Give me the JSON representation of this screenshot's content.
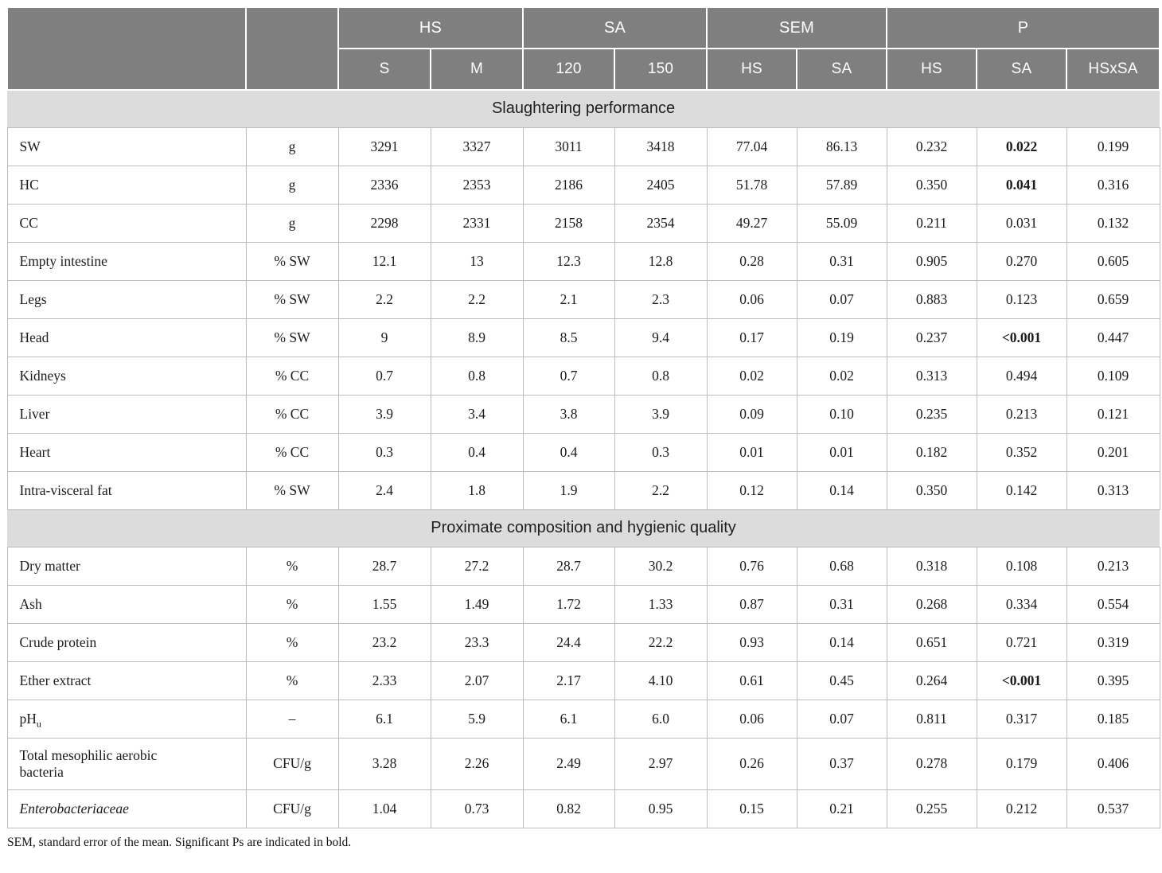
{
  "colors": {
    "header_bg": "#7f7f7f",
    "header_text": "#ffffff",
    "section_bg": "#dcdcdc",
    "border": "#bdbdbd"
  },
  "table": {
    "header": {
      "groups": [
        {
          "label": "HS",
          "span": 2
        },
        {
          "label": "SA",
          "span": 2
        },
        {
          "label": "SEM",
          "span": 2
        },
        {
          "label": "P",
          "span": 3
        }
      ],
      "subcols": [
        "S",
        "M",
        "120",
        "150",
        "HS",
        "SA",
        "HS",
        "SA",
        "HSxSA"
      ]
    },
    "sections": [
      {
        "title": "Slaughtering performance",
        "rows": [
          {
            "label": "SW",
            "unit": "g",
            "values": [
              "3291",
              "3327",
              "3011",
              "3418",
              "77.04",
              "86.13",
              "0.232",
              "0.022",
              "0.199"
            ],
            "bold": [
              7
            ]
          },
          {
            "label": "HC",
            "unit": "g",
            "values": [
              "2336",
              "2353",
              "2186",
              "2405",
              "51.78",
              "57.89",
              "0.350",
              "0.041",
              "0.316"
            ],
            "bold": [
              7
            ]
          },
          {
            "label": "CC",
            "unit": "g",
            "values": [
              "2298",
              "2331",
              "2158",
              "2354",
              "49.27",
              "55.09",
              "0.211",
              "0.031",
              "0.132"
            ],
            "bold": []
          },
          {
            "label": "Empty intestine",
            "unit": "% SW",
            "values": [
              "12.1",
              "13",
              "12.3",
              "12.8",
              "0.28",
              "0.31",
              "0.905",
              "0.270",
              "0.605"
            ],
            "bold": []
          },
          {
            "label": "Legs",
            "unit": "% SW",
            "values": [
              "2.2",
              "2.2",
              "2.1",
              "2.3",
              "0.06",
              "0.07",
              "0.883",
              "0.123",
              "0.659"
            ],
            "bold": []
          },
          {
            "label": "Head",
            "unit": "% SW",
            "values": [
              "9",
              "8.9",
              "8.5",
              "9.4",
              "0.17",
              "0.19",
              "0.237",
              "<0.001",
              "0.447"
            ],
            "bold": [
              7
            ]
          },
          {
            "label": "Kidneys",
            "unit": "% CC",
            "values": [
              "0.7",
              "0.8",
              "0.7",
              "0.8",
              "0.02",
              "0.02",
              "0.313",
              "0.494",
              "0.109"
            ],
            "bold": []
          },
          {
            "label": "Liver",
            "unit": "% CC",
            "values": [
              "3.9",
              "3.4",
              "3.8",
              "3.9",
              "0.09",
              "0.10",
              "0.235",
              "0.213",
              "0.121"
            ],
            "bold": []
          },
          {
            "label": "Heart",
            "unit": "% CC",
            "values": [
              "0.3",
              "0.4",
              "0.4",
              "0.3",
              "0.01",
              "0.01",
              "0.182",
              "0.352",
              "0.201"
            ],
            "bold": []
          },
          {
            "label": "Intra-visceral fat",
            "unit": "% SW",
            "values": [
              "2.4",
              "1.8",
              "1.9",
              "2.2",
              "0.12",
              "0.14",
              "0.350",
              "0.142",
              "0.313"
            ],
            "bold": []
          }
        ]
      },
      {
        "title": "Proximate composition and hygienic quality",
        "rows": [
          {
            "label": "Dry matter",
            "unit": "%",
            "values": [
              "28.7",
              "27.2",
              "28.7",
              "30.2",
              "0.76",
              "0.68",
              "0.318",
              "0.108",
              "0.213"
            ],
            "bold": []
          },
          {
            "label": "Ash",
            "unit": "%",
            "values": [
              "1.55",
              "1.49",
              "1.72",
              "1.33",
              "0.87",
              "0.31",
              "0.268",
              "0.334",
              "0.554"
            ],
            "bold": []
          },
          {
            "label": "Crude protein",
            "unit": "%",
            "values": [
              "23.2",
              "23.3",
              "24.4",
              "22.2",
              "0.93",
              "0.14",
              "0.651",
              "0.721",
              "0.319"
            ],
            "bold": []
          },
          {
            "label": "Ether extract",
            "unit": "%",
            "values": [
              "2.33",
              "2.07",
              "2.17",
              "4.10",
              "0.61",
              "0.45",
              "0.264",
              "<0.001",
              "0.395"
            ],
            "bold": [
              7
            ]
          },
          {
            "label": "pH",
            "sub": "u",
            "unit": "–",
            "values": [
              "6.1",
              "5.9",
              "6.1",
              "6.0",
              "0.06",
              "0.07",
              "0.811",
              "0.317",
              "0.185"
            ],
            "bold": []
          },
          {
            "label": "Total mesophilic aerobic\nbacteria",
            "unit": "CFU/g",
            "values": [
              "3.28",
              "2.26",
              "2.49",
              "2.97",
              "0.26",
              "0.37",
              "0.278",
              "0.179",
              "0.406"
            ],
            "bold": []
          },
          {
            "label": "Enterobacteriaceae",
            "italic": true,
            "unit": "CFU/g",
            "values": [
              "1.04",
              "0.73",
              "0.82",
              "0.95",
              "0.15",
              "0.21",
              "0.255",
              "0.212",
              "0.537"
            ],
            "bold": []
          }
        ]
      }
    ],
    "footnote": "SEM, standard error of the mean. Significant Ps are indicated in bold."
  }
}
